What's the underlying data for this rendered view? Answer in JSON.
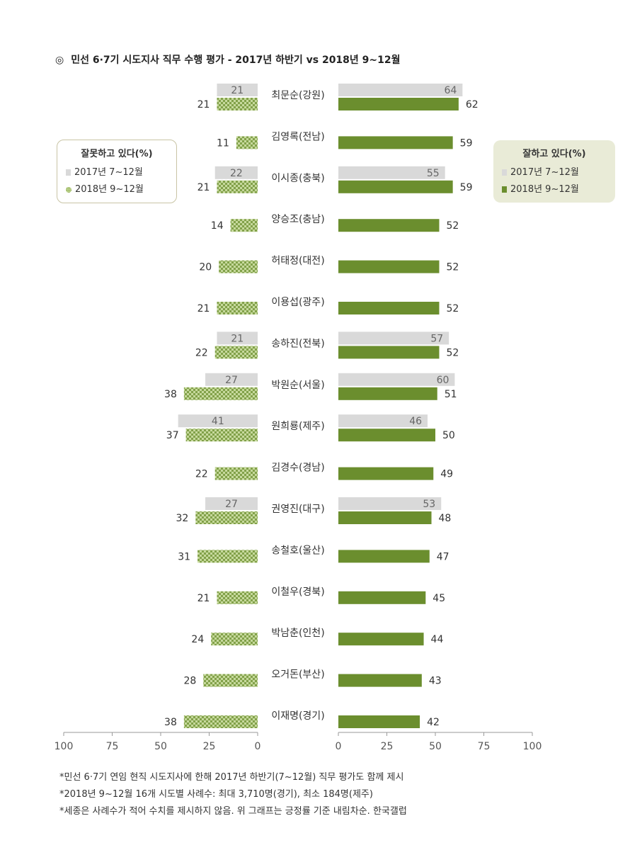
{
  "title": {
    "marker": "◎",
    "text": "민선 6·7기 시도지사 직무 수행 평가 - 2017년 하반기 vs 2018년 9~12월"
  },
  "legend_left": {
    "title": "잘못하고 있다(%)",
    "items": [
      {
        "label": "2017년 7~12월",
        "style": "grey"
      },
      {
        "label": "2018년 9~12월",
        "style": "check"
      }
    ]
  },
  "legend_right": {
    "title": "잘하고 있다(%)",
    "items": [
      {
        "label": "2017년 7~12월",
        "style": "grey"
      },
      {
        "label": "2018년 9~12월",
        "style": "green"
      }
    ]
  },
  "colors": {
    "grey_bar": "#d9d9d9",
    "green_bar": "#6b8e2e",
    "check_light": "#c6d99c",
    "check_dark": "#6b8e2e",
    "legend_right_bg": "#e9ebd7",
    "legend_left_border": "#c9c4a5"
  },
  "chart_data": {
    "type": "bar",
    "orientation": "horizontal-diverging",
    "categories": [
      "최문순(강원)",
      "김영록(전남)",
      "이시종(충북)",
      "양승조(충남)",
      "허태정(대전)",
      "이용섭(광주)",
      "송하진(전북)",
      "박원순(서울)",
      "원희룡(제주)",
      "김경수(경남)",
      "권영진(대구)",
      "송철호(울산)",
      "이철우(경북)",
      "박남춘(인천)",
      "오거돈(부산)",
      "이재명(경기)"
    ],
    "series": [
      {
        "name": "2017년 7~12월",
        "side": "잘못하고 있다(%)",
        "values": [
          21,
          null,
          22,
          null,
          null,
          null,
          21,
          27,
          41,
          null,
          27,
          null,
          null,
          null,
          null,
          null
        ]
      },
      {
        "name": "2018년 9~12월",
        "side": "잘못하고 있다(%)",
        "values": [
          21,
          11,
          21,
          14,
          20,
          21,
          22,
          38,
          37,
          22,
          32,
          31,
          21,
          24,
          28,
          38
        ]
      },
      {
        "name": "2017년 7~12월",
        "side": "잘하고 있다(%)",
        "values": [
          64,
          null,
          55,
          null,
          null,
          null,
          57,
          60,
          46,
          null,
          53,
          null,
          null,
          null,
          null,
          null
        ]
      },
      {
        "name": "2018년 9~12월",
        "side": "잘하고 있다(%)",
        "values": [
          62,
          59,
          59,
          52,
          52,
          52,
          52,
          51,
          50,
          49,
          48,
          47,
          45,
          44,
          43,
          42
        ]
      }
    ],
    "left_axis": {
      "ticks": [
        "100",
        "75",
        "50",
        "25",
        "0"
      ],
      "range": [
        100,
        0
      ]
    },
    "right_axis": {
      "ticks": [
        "0",
        "25",
        "50",
        "75",
        "100"
      ],
      "range": [
        0,
        100
      ]
    },
    "grid": false,
    "legend_placement": "left: middle-left, right: middle-right"
  },
  "footnotes": [
    "*민선 6·7기 연임 현직 시도지사에 한해 2017년 하반기(7~12월) 직무 평가도 함께 제시",
    "*2018년 9~12월 16개 시도별 사례수: 최대 3,710명(경기), 최소 184명(제주)",
    "*세종은 사례수가 적어 수치를 제시하지 않음. 위 그래프는 긍정률 기준 내림차순. 한국갤럽"
  ]
}
